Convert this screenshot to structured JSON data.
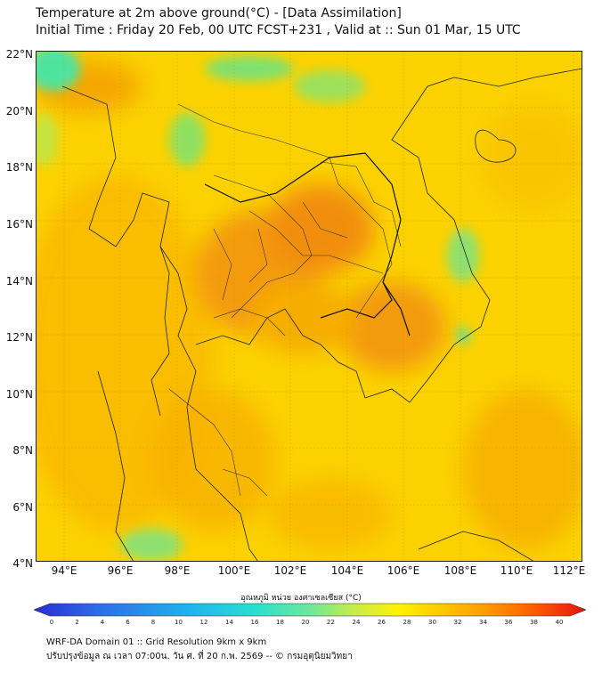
{
  "header": {
    "title_line1": "Temperature at 2m above ground(°C) - [Data Assimilation]",
    "title_line2": "Initial Time : Friday 20 Feb, 00 UTC FCST+231 , Valid at :: Sun 01 Mar, 15 UTC"
  },
  "map": {
    "lat_labels": [
      "22°N",
      "20°N",
      "18°N",
      "16°N",
      "14°N",
      "12°N",
      "10°N",
      "8°N",
      "6°N",
      "4°N"
    ],
    "lon_labels": [
      "94°E",
      "96°E",
      "98°E",
      "100°E",
      "102°E",
      "104°E",
      "106°E",
      "108°E",
      "110°E",
      "112°E"
    ],
    "lat_range": [
      4,
      22
    ],
    "lon_range": [
      93,
      112.3
    ],
    "background_color": "#fbd000",
    "border_color": "#1a1a1a"
  },
  "colorbar": {
    "title": "อุณหภูมิ หน่วย องศาเซลเซียส (°C)",
    "ticks": [
      "0",
      "2",
      "4",
      "6",
      "8",
      "10",
      "12",
      "14",
      "16",
      "18",
      "20",
      "22",
      "24",
      "26",
      "28",
      "30",
      "32",
      "34",
      "36",
      "38",
      "40"
    ],
    "range": [
      0,
      40
    ],
    "colors": [
      "#2a2bd6",
      "#2f6ee8",
      "#1fb3ee",
      "#28e0d0",
      "#6fe89a",
      "#c8ec4a",
      "#fff200",
      "#ffc800",
      "#ff9a00",
      "#ff5a00",
      "#e81010"
    ]
  },
  "footer": {
    "line1": "WRF-DA Domain 01 :: Grid Resolution 9km x 9km",
    "line2": "ปรับปรุงข้อมูล ณ เวลา 07:00น. วัน ศ. ที่ 20 ก.พ. 2569 -- © กรมอุตุนิยมวิทยา"
  }
}
